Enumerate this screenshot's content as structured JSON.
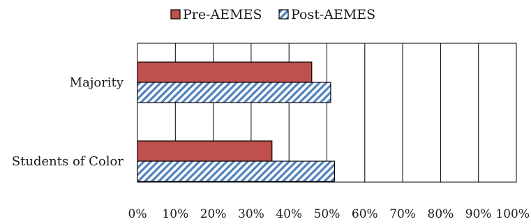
{
  "chart_data": {
    "type": "bar",
    "orientation": "horizontal",
    "categories": [
      "Majority",
      "Students of Color"
    ],
    "series": [
      {
        "name": "Pre-AEMES",
        "values": [
          0.46,
          0.355
        ],
        "color": "#c0504d",
        "pattern": "solid"
      },
      {
        "name": "Post-AEMES",
        "values": [
          0.51,
          0.52
        ],
        "color": "#4f81bd",
        "pattern": "diagonal-hatch"
      }
    ],
    "xlim": [
      0,
      1
    ],
    "xticks": [
      0,
      0.1,
      0.2,
      0.3,
      0.4,
      0.5,
      0.6,
      0.7,
      0.8,
      0.9,
      1.0
    ],
    "xtick_labels": [
      "0%",
      "10%",
      "20%",
      "30%",
      "40%",
      "50%",
      "60%",
      "70%",
      "80%",
      "90%",
      "100%"
    ],
    "title": "",
    "xlabel": "",
    "ylabel": "",
    "grid": "vertical",
    "legend_position": "top-center"
  }
}
